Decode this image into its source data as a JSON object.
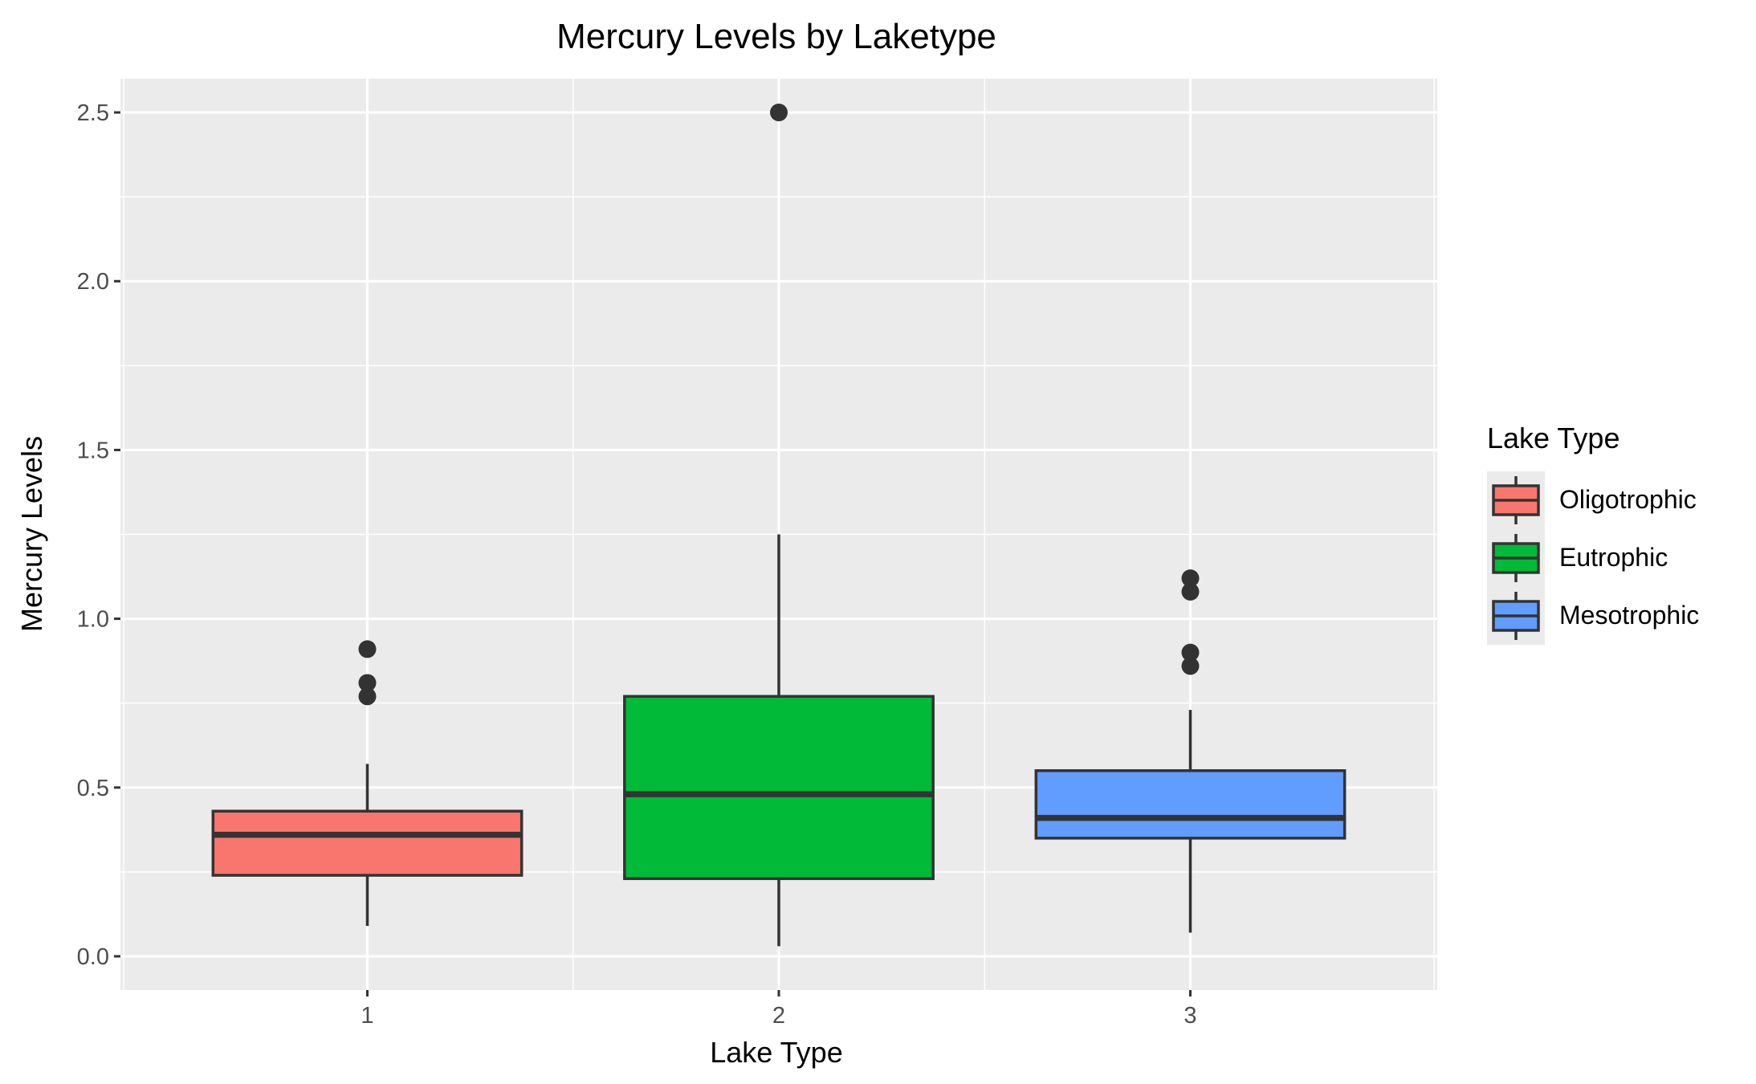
{
  "chart_data": {
    "type": "box",
    "title": "Mercury Levels by Laketype",
    "xlabel": "Lake Type",
    "ylabel": "Mercury Levels",
    "ylim": [
      -0.1,
      2.6
    ],
    "yticks": [
      "0.0",
      "0.5",
      "1.0",
      "1.5",
      "2.0",
      "2.5"
    ],
    "ytick_values": [
      0.0,
      0.5,
      1.0,
      1.5,
      2.0,
      2.5
    ],
    "categories": [
      "1",
      "2",
      "3"
    ],
    "grid": true,
    "legend": {
      "title": "Lake Type",
      "placement": "right",
      "entries": [
        "Oligotrophic",
        "Eutrophic",
        "Mesotrophic"
      ]
    },
    "colors": {
      "Oligotrophic": "#F8766D",
      "Eutrophic": "#00BA38",
      "Mesotrophic": "#619CFF",
      "panel_bg": "#EBEBEB",
      "grid": "#FFFFFF",
      "box_line": "#333333"
    },
    "boxes": [
      {
        "category": "1",
        "name": "Oligotrophic",
        "whisker_low": 0.09,
        "q1": 0.24,
        "median": 0.36,
        "q3": 0.43,
        "whisker_high": 0.57,
        "outliers": [
          0.77,
          0.81,
          0.91
        ]
      },
      {
        "category": "2",
        "name": "Eutrophic",
        "whisker_low": 0.03,
        "q1": 0.23,
        "median": 0.48,
        "q3": 0.77,
        "whisker_high": 1.25,
        "outliers": [
          2.5
        ]
      },
      {
        "category": "3",
        "name": "Mesotrophic",
        "whisker_low": 0.07,
        "q1": 0.35,
        "median": 0.41,
        "q3": 0.55,
        "whisker_high": 0.73,
        "outliers": [
          0.86,
          0.9,
          1.08,
          1.12
        ]
      }
    ]
  }
}
